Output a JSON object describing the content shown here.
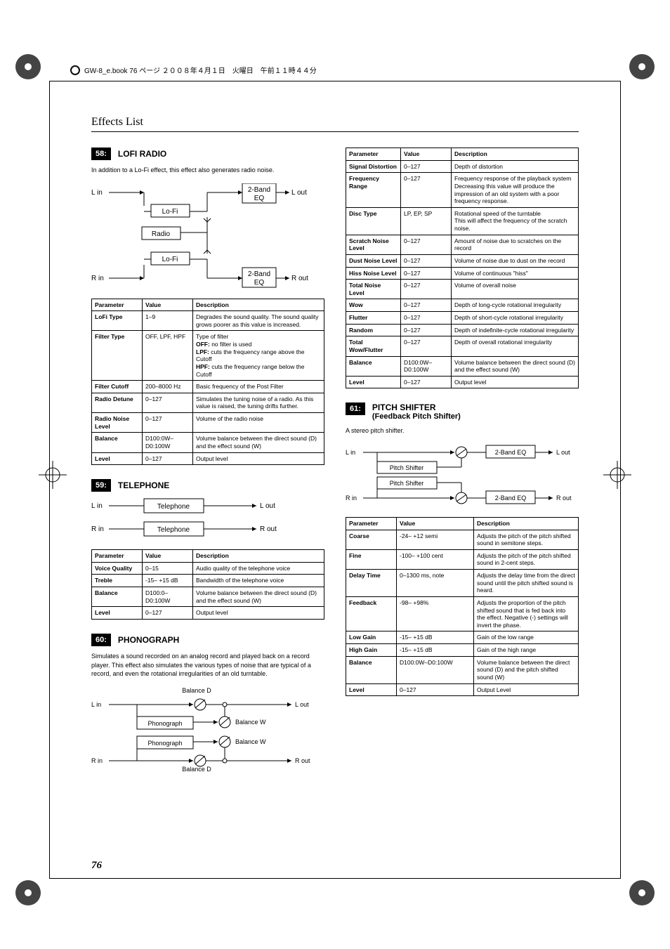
{
  "book_header": "GW-8_e.book 76 ページ ２００８年４月１日　火曜日　午前１１時４４分",
  "page_title": "Effects List",
  "page_number": "76",
  "sections": {
    "lofi": {
      "num": "58:",
      "title": "LOFI RADIO",
      "desc": "In addition to a Lo-Fi effect, this effect also generates radio noise.",
      "diagram": {
        "lin": "L in",
        "lout": "L out",
        "rin": "R in",
        "rout": "R out",
        "lofi": "Lo-Fi",
        "radio": "Radio",
        "eq": "2-Band\nEQ"
      },
      "headers": [
        "Parameter",
        "Value",
        "Description"
      ],
      "rows": [
        [
          "LoFi Type",
          "1–9",
          "Degrades the sound quality. The sound quality grows poorer as this value is increased."
        ],
        [
          "Filter Type",
          "OFF, LPF, HPF",
          "Type of filter\nOFF: no filter is used\nLPF: cuts the frequency range above the Cutoff\nHPF: cuts the frequency range below the Cutoff"
        ],
        [
          "Filter Cutoff",
          "200–8000 Hz",
          "Basic frequency of the Post Filter"
        ],
        [
          "Radio Detune",
          "0–127",
          "Simulates the tuning noise of a radio. As this value is raised, the tuning drifts further."
        ],
        [
          "Radio Noise Level",
          "0–127",
          "Volume of the radio noise"
        ],
        [
          "Balance",
          "D100:0W–D0:100W",
          "Volume balance between the direct sound (D) and the effect sound (W)"
        ],
        [
          "Level",
          "0–127",
          "Output level"
        ]
      ]
    },
    "telephone": {
      "num": "59:",
      "title": "TELEPHONE",
      "diagram": {
        "lin": "L in",
        "lout": "L out",
        "rin": "R in",
        "rout": "R out",
        "box": "Telephone"
      },
      "headers": [
        "Parameter",
        "Value",
        "Description"
      ],
      "rows": [
        [
          "Voice Quality",
          "0–15",
          "Audio quality of the telephone voice"
        ],
        [
          "Treble",
          "-15– +15 dB",
          "Bandwidth of the telephone voice"
        ],
        [
          "Balance",
          "D100:0–D0:100W",
          "Volume balance between the direct sound (D) and the effect sound (W)"
        ],
        [
          "Level",
          "0–127",
          "Output level"
        ]
      ]
    },
    "phonograph": {
      "num": "60:",
      "title": "PHONOGRAPH",
      "desc": "Simulates a sound recorded on an analog record and played back on a record player. This effect also simulates the various types of noise that are typical of a record, and even the rotational irregularities of an old turntable.",
      "diagram": {
        "lin": "L in",
        "lout": "L out",
        "rin": "R in",
        "rout": "R out",
        "box": "Phonograph",
        "bd": "Balance D",
        "bw": "Balance W"
      },
      "headers": [
        "Parameter",
        "Value",
        "Description"
      ],
      "rows": [
        [
          "Signal Distortion",
          "0–127",
          "Depth of distortion"
        ],
        [
          "Frequency Range",
          "0–127",
          "Frequency response of the playback system Decreasing this value will produce the impression of an old system with a poor frequency response."
        ],
        [
          "Disc Type",
          "LP, EP, SP",
          "Rotational speed of the turntable\nThis will affect the frequency of the scratch noise."
        ],
        [
          "Scratch Noise Level",
          "0–127",
          "Amount of noise due to scratches on the record"
        ],
        [
          "Dust Noise Level",
          "0–127",
          "Volume of noise due to dust on the record"
        ],
        [
          "Hiss Noise Level",
          "0–127",
          "Volume of continuous \"hiss\""
        ],
        [
          "Total Noise Level",
          "0–127",
          "Volume of overall noise"
        ],
        [
          "Wow",
          "0–127",
          "Depth of long-cycle rotational irregularity"
        ],
        [
          "Flutter",
          "0–127",
          "Depth of short-cycle rotational irregularity"
        ],
        [
          "Random",
          "0–127",
          "Depth of indefinite-cycle rotational irregularity"
        ],
        [
          "Total Wow/Flutter",
          "0–127",
          "Depth of overall rotational irregularity"
        ],
        [
          "Balance",
          "D100:0W–D0:100W",
          "Volume balance between the direct sound (D) and the effect sound (W)"
        ],
        [
          "Level",
          "0–127",
          "Output level"
        ]
      ]
    },
    "pitch": {
      "num": "61:",
      "title": "PITCH SHIFTER",
      "subtitle": "(Feedback Pitch Shifter)",
      "desc": "A stereo pitch shifter.",
      "diagram": {
        "lin": "L in",
        "lout": "L out",
        "rin": "R in",
        "rout": "R out",
        "box": "Pitch Shifter",
        "eq": "2-Band EQ"
      },
      "headers": [
        "Parameter",
        "Value",
        "Description"
      ],
      "rows": [
        [
          "Coarse",
          "-24– +12 semi",
          "Adjusts the pitch of the pitch shifted sound in semitone steps."
        ],
        [
          "Fine",
          "-100– +100 cent",
          "Adjusts the pitch of the pitch shifted sound in 2-cent steps."
        ],
        [
          "Delay Time",
          "0–1300 ms, note",
          "Adjusts the delay time from the direct sound until the pitch shifted sound is heard."
        ],
        [
          "Feedback",
          "-98– +98%",
          "Adjusts the proportion of the pitch shifted sound that is fed back into the effect. Negative (-) settings will invert the phase."
        ],
        [
          "Low Gain",
          "-15– +15 dB",
          "Gain of the low range"
        ],
        [
          "High Gain",
          "-15– +15 dB",
          "Gain of the high range"
        ],
        [
          "Balance",
          "D100:0W–D0:100W",
          "Volume balance between the direct sound (D) and the pitch shifted sound (W)"
        ],
        [
          "Level",
          "0–127",
          "Output Level"
        ]
      ]
    }
  }
}
